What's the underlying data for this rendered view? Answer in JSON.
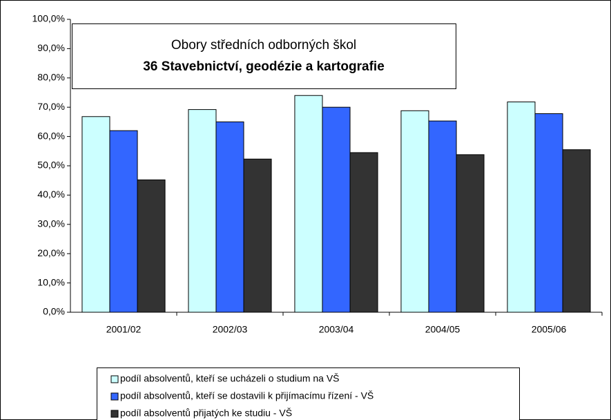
{
  "chart_data": {
    "type": "bar",
    "title": "Obory středních odborných škol",
    "subtitle": "36 Stavebnictví, geodézie a kartografie",
    "categories": [
      "2001/02",
      "2002/03",
      "2003/04",
      "2004/05",
      "2005/06"
    ],
    "series": [
      {
        "name": "podíl absolventů, kteří se ucházeli o studium na VŠ",
        "color": "#ccffff",
        "values": [
          66.8,
          69.2,
          74.0,
          68.8,
          71.8
        ]
      },
      {
        "name": "podíl absolventů, kteří se dostavili k přijímacímu řízení - VŠ",
        "color": "#3366ff",
        "values": [
          62.0,
          65.0,
          70.0,
          65.3,
          67.8
        ]
      },
      {
        "name": "podíl absolventů přijatých ke studiu - VŠ",
        "color": "#333333",
        "values": [
          45.2,
          52.3,
          54.5,
          53.8,
          55.5
        ]
      }
    ],
    "ylim": [
      0,
      100
    ],
    "yticks": [
      {
        "value": 0,
        "label": "0,0%"
      },
      {
        "value": 10,
        "label": "10,0%"
      },
      {
        "value": 20,
        "label": "20,0%"
      },
      {
        "value": 30,
        "label": "30,0%"
      },
      {
        "value": 40,
        "label": "40,0%"
      },
      {
        "value": 50,
        "label": "50,0%"
      },
      {
        "value": 60,
        "label": "60,0%"
      },
      {
        "value": 70,
        "label": "70,0%"
      },
      {
        "value": 80,
        "label": "80,0%"
      },
      {
        "value": 90,
        "label": "90,0%"
      },
      {
        "value": 100,
        "label": "100,0%"
      }
    ],
    "grid": false
  }
}
